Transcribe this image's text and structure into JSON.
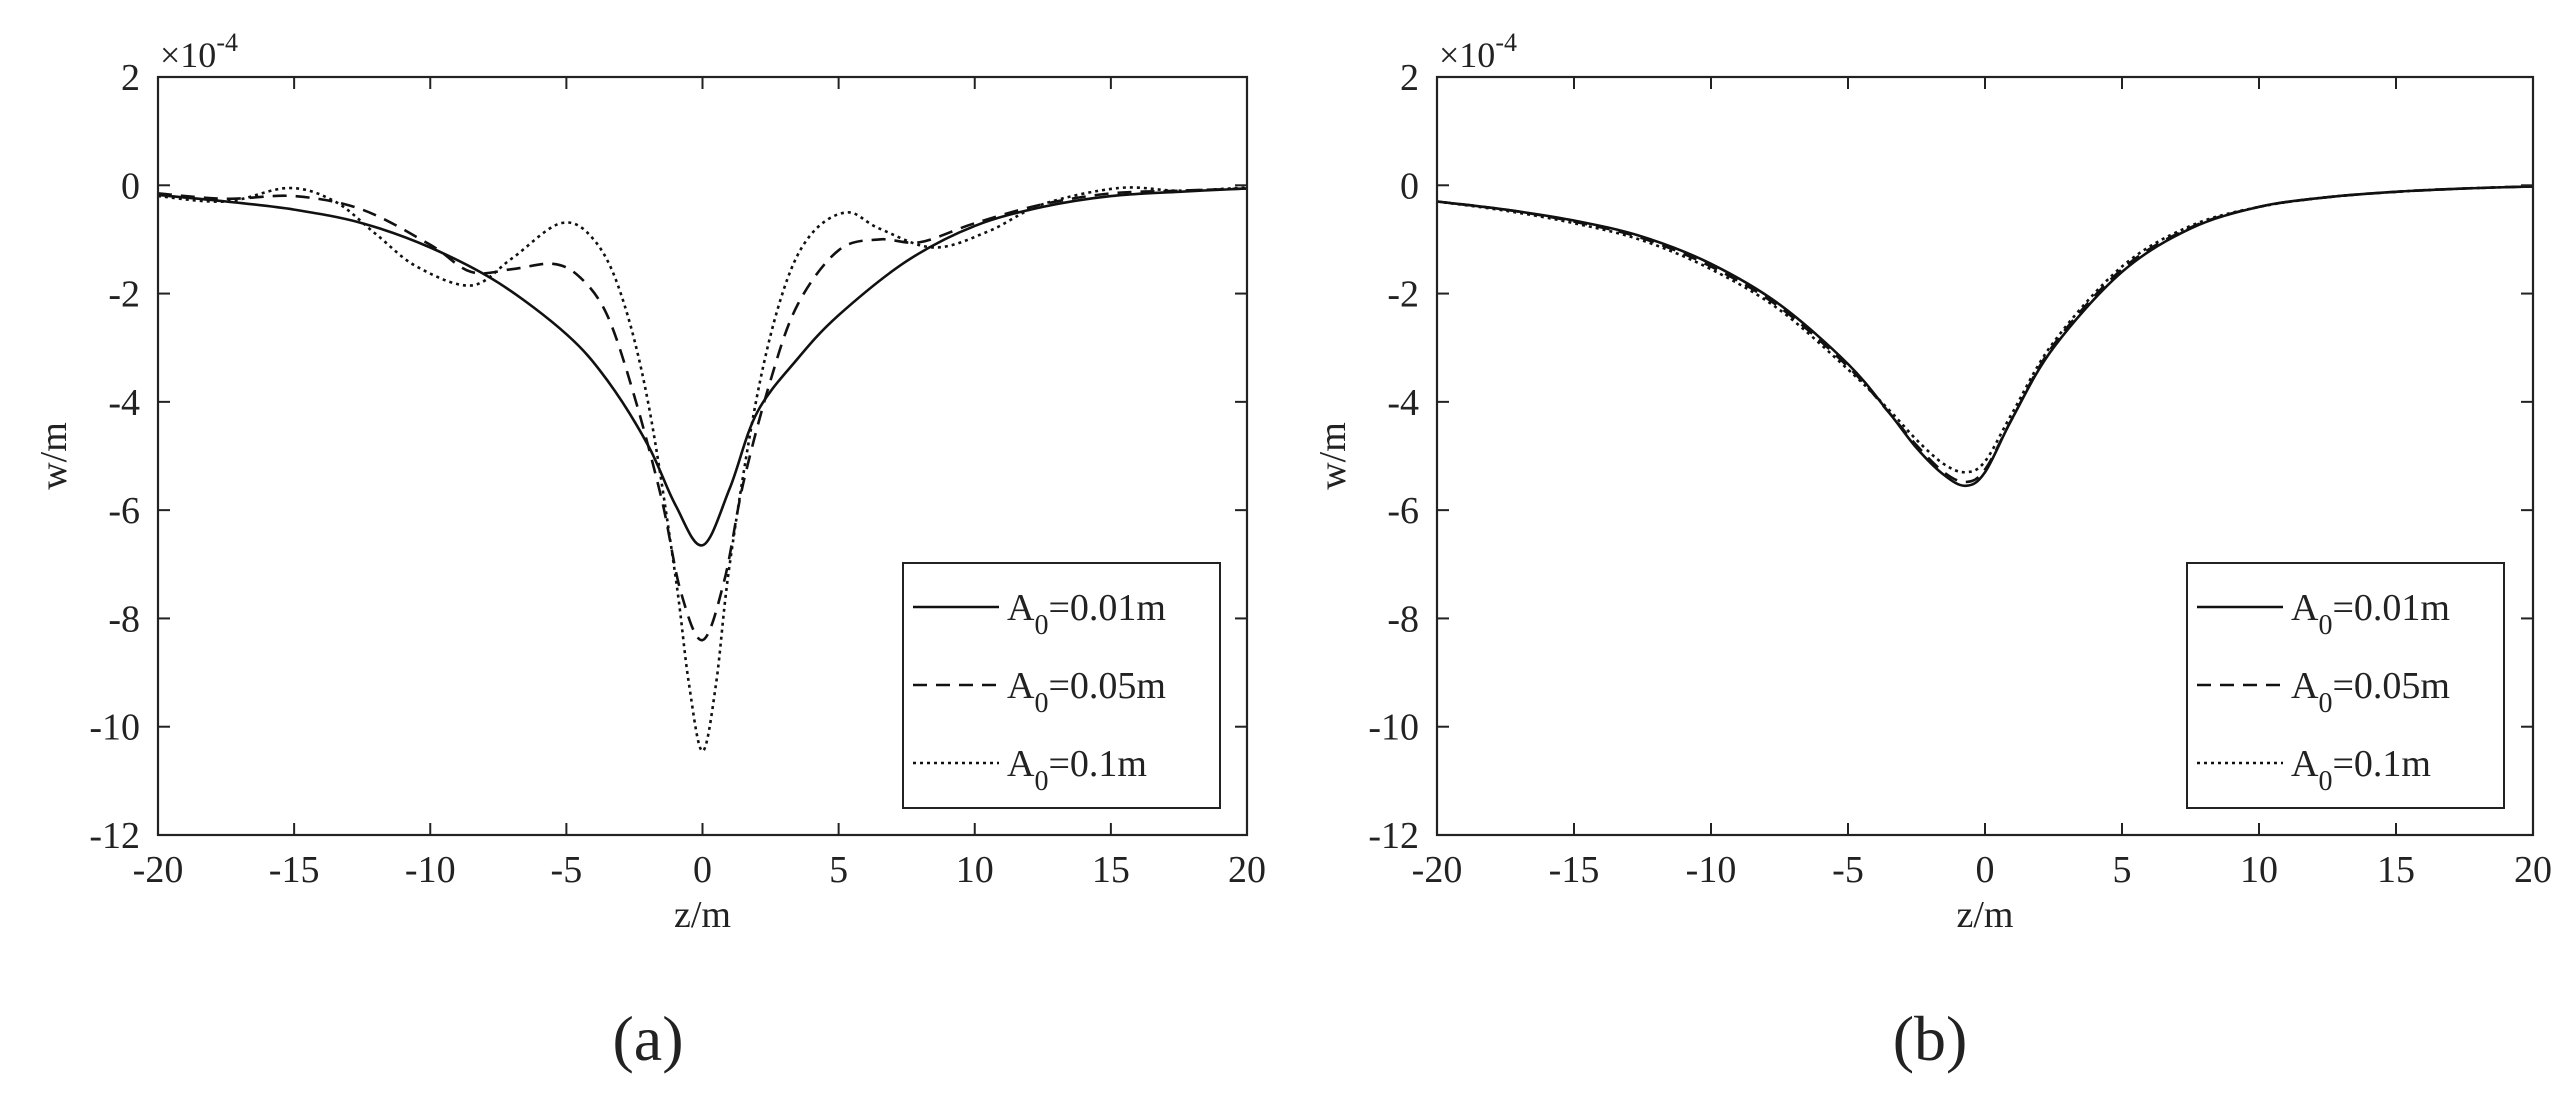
{
  "chart_data": [
    {
      "type": "line",
      "panel_label": "(a)",
      "xlabel": "z/m",
      "ylabel": "w/m",
      "y_multiplier": "×10",
      "y_exponent": "-4",
      "xlim": [
        -20,
        20
      ],
      "ylim": [
        -12,
        2
      ],
      "xticks": [
        -20,
        -15,
        -10,
        -5,
        0,
        5,
        10,
        15,
        20
      ],
      "yticks": [
        2,
        0,
        -2,
        -4,
        -6,
        -8,
        -10,
        -12
      ],
      "grid": false,
      "legend_position": "lower-right",
      "series": [
        {
          "label_base": "A",
          "label_sub": "0",
          "label_value": "=0.01m",
          "style": "solid",
          "x": [
            -20,
            -17.5,
            -15,
            -12.5,
            -10,
            -7.5,
            -5,
            -3.5,
            -2,
            -1,
            0,
            1,
            2,
            3.5,
            5,
            7.5,
            10,
            12.5,
            15,
            17.5,
            20
          ],
          "y": [
            -0.18,
            -0.3,
            -0.45,
            -0.7,
            -1.15,
            -1.8,
            -2.75,
            -3.6,
            -4.8,
            -5.9,
            -6.65,
            -5.6,
            -4.2,
            -3.2,
            -2.4,
            -1.4,
            -0.75,
            -0.4,
            -0.2,
            -0.12,
            -0.06
          ]
        },
        {
          "label_base": "A",
          "label_sub": "0",
          "label_value": "=0.05m",
          "style": "dashed",
          "x": [
            -20,
            -17.5,
            -15,
            -12.5,
            -10,
            -8.5,
            -7,
            -5.5,
            -4.5,
            -3.5,
            -2.5,
            -1.5,
            -0.8,
            0,
            0.8,
            1.5,
            2.5,
            3.5,
            5,
            6.5,
            8,
            10,
            12.5,
            15,
            17.5,
            20
          ],
          "y": [
            -0.15,
            -0.25,
            -0.2,
            -0.45,
            -1.1,
            -1.6,
            -1.55,
            -1.45,
            -1.7,
            -2.4,
            -3.9,
            -5.8,
            -7.5,
            -8.4,
            -7.3,
            -5.5,
            -3.6,
            -2.2,
            -1.2,
            -1.0,
            -1.05,
            -0.7,
            -0.35,
            -0.15,
            -0.1,
            -0.06
          ]
        },
        {
          "label_base": "A",
          "label_sub": "0",
          "label_value": "=0.1m",
          "style": "dotted",
          "x": [
            -20,
            -17.5,
            -15.2,
            -13.5,
            -12,
            -10.5,
            -8.5,
            -7,
            -5.2,
            -4,
            -3,
            -2,
            -1,
            -0.5,
            0,
            0.5,
            1,
            2,
            3,
            4,
            5.3,
            6.5,
            8.5,
            10.5,
            12.5,
            15.3,
            17.5,
            20
          ],
          "y": [
            -0.2,
            -0.3,
            -0.05,
            -0.3,
            -0.9,
            -1.5,
            -1.85,
            -1.35,
            -0.7,
            -1.0,
            -2.0,
            -4.0,
            -7.2,
            -9.2,
            -10.45,
            -9.2,
            -7.0,
            -3.9,
            -1.9,
            -0.9,
            -0.5,
            -0.8,
            -1.15,
            -0.85,
            -0.35,
            -0.05,
            -0.1,
            -0.04
          ]
        }
      ]
    },
    {
      "type": "line",
      "panel_label": "(b)",
      "xlabel": "z/m",
      "ylabel": "w/m",
      "y_multiplier": "×10",
      "y_exponent": "-4",
      "xlim": [
        -20,
        20
      ],
      "ylim": [
        -12,
        2
      ],
      "xticks": [
        -20,
        -15,
        -10,
        -5,
        0,
        5,
        10,
        15,
        20
      ],
      "yticks": [
        2,
        0,
        -2,
        -4,
        -6,
        -8,
        -10,
        -12
      ],
      "grid": false,
      "legend_position": "lower-right",
      "series": [
        {
          "label_base": "A",
          "label_sub": "0",
          "label_value": "=0.01m",
          "style": "solid",
          "x": [
            -20,
            -17.5,
            -15,
            -12.5,
            -10,
            -7.5,
            -5,
            -3.5,
            -2.5,
            -1.5,
            -0.7,
            0,
            1,
            2.5,
            5,
            7.5,
            10,
            12.5,
            15,
            17.5,
            20
          ],
          "y": [
            -0.3,
            -0.45,
            -0.65,
            -0.95,
            -1.45,
            -2.2,
            -3.3,
            -4.2,
            -4.85,
            -5.35,
            -5.55,
            -5.3,
            -4.3,
            -3.0,
            -1.6,
            -0.8,
            -0.4,
            -0.22,
            -0.12,
            -0.06,
            -0.02
          ]
        },
        {
          "label_base": "A",
          "label_sub": "0",
          "label_value": "=0.05m",
          "style": "dashed",
          "x": [
            -20,
            -17.5,
            -15,
            -12.5,
            -10,
            -7.5,
            -5,
            -3.5,
            -2.5,
            -1.5,
            -0.7,
            0,
            1,
            2.5,
            5,
            7.5,
            10,
            12.5,
            15,
            17.5,
            20
          ],
          "y": [
            -0.3,
            -0.45,
            -0.67,
            -0.98,
            -1.5,
            -2.25,
            -3.35,
            -4.2,
            -4.8,
            -5.3,
            -5.48,
            -5.25,
            -4.3,
            -2.95,
            -1.55,
            -0.78,
            -0.4,
            -0.22,
            -0.12,
            -0.06,
            -0.02
          ]
        },
        {
          "label_base": "A",
          "label_sub": "0",
          "label_value": "=0.1m",
          "style": "dotted",
          "x": [
            -20,
            -17.5,
            -15,
            -12.5,
            -10,
            -7.5,
            -5,
            -3.5,
            -2.5,
            -1.5,
            -0.7,
            0,
            1,
            2.5,
            5,
            7.5,
            10,
            12.5,
            15,
            17.5,
            20
          ],
          "y": [
            -0.3,
            -0.47,
            -0.7,
            -1.02,
            -1.55,
            -2.3,
            -3.4,
            -4.15,
            -4.7,
            -5.15,
            -5.3,
            -5.1,
            -4.2,
            -2.9,
            -1.5,
            -0.75,
            -0.4,
            -0.22,
            -0.12,
            -0.06,
            -0.02
          ]
        }
      ]
    }
  ]
}
